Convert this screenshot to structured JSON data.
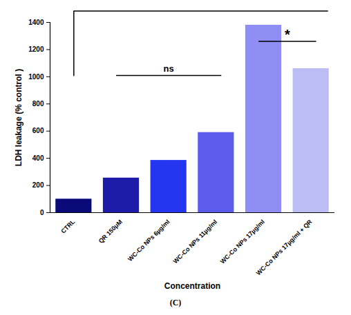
{
  "chart_data": {
    "type": "bar",
    "caption": "(C)",
    "xlabel": "Concentration",
    "ylabel": "LDH leakage (% control )",
    "categories": [
      "CTRL",
      "QR 150μM",
      "WC-Co NPs 6µg/ml",
      "WC-Co NPs 11µg/ml",
      "WC-Co NPs 17µg/ml",
      "WC-Co NPs 17µg/ml + QR"
    ],
    "values": [
      100,
      255,
      385,
      590,
      1380,
      1060
    ],
    "colors": [
      "#0a0a78",
      "#1c1ca8",
      "#2436ef",
      "#5c5cec",
      "#8e8ef4",
      "#bdbdf5"
    ],
    "ylim": [
      0,
      1400
    ],
    "yticks": [
      0,
      200,
      400,
      600,
      800,
      1000,
      1200,
      1400
    ],
    "annotations": [
      {
        "from": "CTRL",
        "to": "WC-Co NPs 17µg/ml + QR"
      },
      {
        "text": "ns",
        "from": "QR 150μM",
        "to": "WC-Co NPs 11µg/ml"
      },
      {
        "text": "*",
        "from": "WC-Co NPs 17µg/ml",
        "to": "WC-Co NPs 17µg/ml + QR"
      }
    ]
  }
}
